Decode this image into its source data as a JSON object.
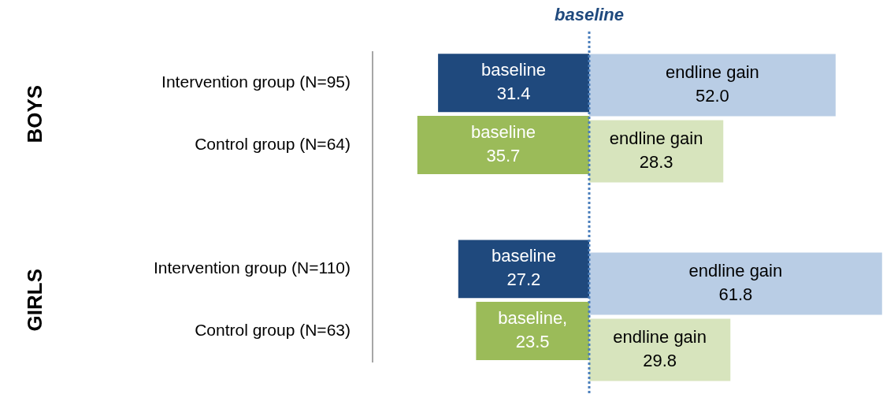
{
  "chart_data": [
    {
      "type": "bar",
      "orientation": "horizontal",
      "categories": [
        "Intervention group (N=95)",
        "Control group (N=64)",
        null,
        "Intervention group (N=110)",
        "Control group (N=63)"
      ],
      "series": [
        {
          "colors": [
            "#1f497d",
            "#9bbb59",
            null,
            "#1f497d",
            "#9bbb59"
          ],
          "values": [
            31.4,
            35.7,
            null,
            27.2,
            23.5
          ],
          "value_labels": [
            "baseline\n31.4",
            "baseline\n35.7",
            null,
            "baseline\n27.2",
            "baseline,\n23.5"
          ]
        }
      ],
      "xlim": [
        45,
        0
      ],
      "tick_labels": "y",
      "grid": false,
      "legend": false,
      "ref_lines": [
        {
          "axis": "x",
          "value": 0,
          "label": "baseline",
          "color": "#4a7ebb",
          "line_style": "dotted"
        }
      ],
      "annotations": [
        "BOYS",
        "GIRLS"
      ]
    },
    {
      "type": "bar",
      "orientation": "horizontal",
      "categories": [
        null,
        null,
        null,
        null,
        null
      ],
      "series": [
        {
          "colors": [
            "#b9cde5",
            "#d7e4bd",
            null,
            "#b9cde5",
            "#d7e4bd"
          ],
          "values": [
            52.0,
            28.3,
            null,
            61.8,
            29.8
          ],
          "value_labels": [
            "endline gain\n52.0",
            "endline gain\n28.3",
            null,
            "endline gain\n61.8",
            "endline gain\n29.8"
          ]
        }
      ],
      "xlim": [
        0,
        62
      ],
      "tick_labels": false,
      "grid": false,
      "legend": false
    }
  ]
}
